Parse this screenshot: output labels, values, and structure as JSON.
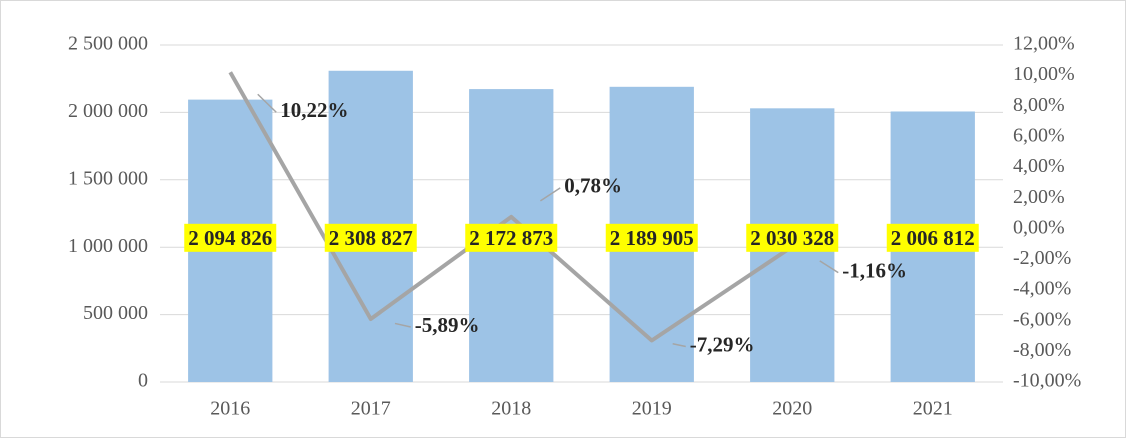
{
  "chart_data": {
    "type": "bar_line",
    "categories": [
      "2016",
      "2017",
      "2018",
      "2019",
      "2020",
      "2021"
    ],
    "series": [
      {
        "type": "bar",
        "color": "#9dc3e6",
        "values": [
          2094826,
          2308827,
          2172873,
          2189905,
          2030328,
          2006812
        ],
        "value_labels": [
          "2 094 826",
          "2 308 827",
          "2 172 873",
          "2 189 905",
          "2 030 328",
          "2 006 812"
        ]
      },
      {
        "type": "line",
        "color": "#a5a5a5",
        "axis": "y2",
        "values": [
          10.22,
          -5.89,
          0.78,
          -7.29,
          -1.16,
          null
        ],
        "value_labels": [
          "10,22%",
          "-5,89%",
          "0,78%",
          "-7,29%",
          "-1,16%",
          null
        ]
      }
    ],
    "ylim": [
      0,
      2500000
    ],
    "yticks": [
      0,
      {
        "value": 500000,
        "label": "500 000"
      },
      {
        "value": 1000000,
        "label": "1 000 000"
      },
      {
        "value": 1500000,
        "label": "1 500 000"
      },
      {
        "value": 2000000,
        "label": "2 000 000"
      },
      {
        "value": 2500000,
        "label": "2 500 000"
      }
    ],
    "y2lim": [
      -10,
      12
    ],
    "y2ticks": [
      {
        "value": -10,
        "label": "-10,00%"
      },
      {
        "value": -8,
        "label": "-8,00%"
      },
      {
        "value": -6,
        "label": "-6,00%"
      },
      {
        "value": -4,
        "label": "-4,00%"
      },
      {
        "value": -2,
        "label": "-2,00%"
      },
      {
        "value": 0,
        "label": "0,00%"
      },
      {
        "value": 2,
        "label": "2,00%"
      },
      {
        "value": 4,
        "label": "4,00%"
      },
      {
        "value": 6,
        "label": "6,00%"
      },
      {
        "value": 8,
        "label": "8,00%"
      },
      {
        "value": 10,
        "label": "10,00%"
      },
      {
        "value": 12,
        "label": "12,00%"
      }
    ],
    "grid": true
  }
}
